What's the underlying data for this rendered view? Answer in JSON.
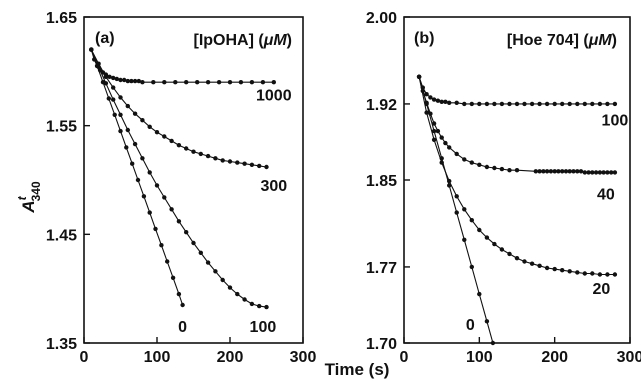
{
  "x_axis_title": "Time (s)",
  "chart_data": [
    {
      "type": "scatter",
      "panel": "(a)",
      "legend_title": "[IpOHA] (μM)",
      "legend_title_main": "[IpOHA] (",
      "legend_title_unit": "μM",
      "legend_title_close": ")",
      "ylabel": "A340t",
      "ylabel_main": "A",
      "ylabel_sup": "t",
      "ylabel_sub": "340",
      "xlim": [
        0,
        300
      ],
      "ylim": [
        1.35,
        1.65
      ],
      "xticks": [
        0,
        100,
        200,
        300
      ],
      "yticks": [
        1.35,
        1.45,
        1.55,
        1.65
      ],
      "xtick_labels": [
        "0",
        "100",
        "200",
        "300"
      ],
      "ytick_labels": [
        "1.35",
        "1.45",
        "1.55",
        "1.65"
      ],
      "series": [
        {
          "name": "1000",
          "label_at": [
            260,
            1.573
          ],
          "points": [
            [
              10,
              1.62
            ],
            [
              14,
              1.611
            ],
            [
              18,
              1.605
            ],
            [
              22,
              1.601
            ],
            [
              26,
              1.599
            ],
            [
              30,
              1.597
            ],
            [
              35,
              1.595
            ],
            [
              40,
              1.594
            ],
            [
              45,
              1.593
            ],
            [
              50,
              1.592
            ],
            [
              55,
              1.592
            ],
            [
              60,
              1.591
            ],
            [
              65,
              1.591
            ],
            [
              70,
              1.591
            ],
            [
              75,
              1.591
            ],
            [
              80,
              1.59
            ],
            [
              95,
              1.59
            ],
            [
              110,
              1.59
            ],
            [
              125,
              1.59
            ],
            [
              140,
              1.59
            ],
            [
              155,
              1.59
            ],
            [
              170,
              1.59
            ],
            [
              185,
              1.59
            ],
            [
              200,
              1.59
            ],
            [
              215,
              1.59
            ],
            [
              230,
              1.59
            ],
            [
              245,
              1.59
            ],
            [
              260,
              1.59
            ]
          ]
        },
        {
          "name": "300",
          "label_at": [
            260,
            1.49
          ],
          "points": [
            [
              10,
              1.62
            ],
            [
              20,
              1.607
            ],
            [
              30,
              1.595
            ],
            [
              40,
              1.585
            ],
            [
              50,
              1.576
            ],
            [
              60,
              1.568
            ],
            [
              70,
              1.561
            ],
            [
              80,
              1.555
            ],
            [
              90,
              1.549
            ],
            [
              100,
              1.544
            ],
            [
              110,
              1.54
            ],
            [
              120,
              1.536
            ],
            [
              130,
              1.532
            ],
            [
              140,
              1.529
            ],
            [
              150,
              1.526
            ],
            [
              160,
              1.524
            ],
            [
              170,
              1.522
            ],
            [
              180,
              1.52
            ],
            [
              190,
              1.518
            ],
            [
              200,
              1.517
            ],
            [
              210,
              1.516
            ],
            [
              220,
              1.515
            ],
            [
              230,
              1.514
            ],
            [
              240,
              1.513
            ],
            [
              250,
              1.512
            ]
          ]
        },
        {
          "name": "100",
          "label_at": [
            245,
            1.36
          ],
          "points": [
            [
              10,
              1.62
            ],
            [
              20,
              1.604
            ],
            [
              30,
              1.589
            ],
            [
              40,
              1.574
            ],
            [
              50,
              1.56
            ],
            [
              60,
              1.546
            ],
            [
              70,
              1.533
            ],
            [
              80,
              1.52
            ],
            [
              90,
              1.507
            ],
            [
              100,
              1.495
            ],
            [
              110,
              1.484
            ],
            [
              120,
              1.473
            ],
            [
              130,
              1.462
            ],
            [
              140,
              1.452
            ],
            [
              150,
              1.442
            ],
            [
              160,
              1.433
            ],
            [
              170,
              1.424
            ],
            [
              180,
              1.416
            ],
            [
              190,
              1.408
            ],
            [
              200,
              1.401
            ],
            [
              210,
              1.395
            ],
            [
              220,
              1.39
            ],
            [
              230,
              1.386
            ],
            [
              240,
              1.384
            ],
            [
              250,
              1.383
            ]
          ]
        },
        {
          "name": "0",
          "label_at": [
            135,
            1.36
          ],
          "points": [
            [
              10,
              1.62
            ],
            [
              18,
              1.605
            ],
            [
              26,
              1.59
            ],
            [
              34,
              1.575
            ],
            [
              42,
              1.56
            ],
            [
              50,
              1.545
            ],
            [
              58,
              1.53
            ],
            [
              66,
              1.515
            ],
            [
              74,
              1.5
            ],
            [
              82,
              1.485
            ],
            [
              90,
              1.47
            ],
            [
              98,
              1.455
            ],
            [
              106,
              1.44
            ],
            [
              114,
              1.425
            ],
            [
              122,
              1.41
            ],
            [
              130,
              1.395
            ],
            [
              135,
              1.385
            ]
          ]
        }
      ]
    },
    {
      "type": "scatter",
      "panel": "(b)",
      "legend_title": "[Hoe 704] (μM)",
      "legend_title_main": "[Hoe 704] (",
      "legend_title_unit": "μM",
      "legend_title_close": ")",
      "xlim": [
        0,
        300
      ],
      "ylim": [
        1.7,
        2.0
      ],
      "xticks": [
        0,
        100,
        200,
        300
      ],
      "yticks": [
        1.7,
        1.77,
        1.85,
        1.92,
        2.0
      ],
      "xtick_labels": [
        "0",
        "100",
        "200",
        "300"
      ],
      "ytick_labels": [
        "1.70",
        "1.77",
        "1.85",
        "1.92",
        "2.00"
      ],
      "series": [
        {
          "name": "100",
          "label_at": [
            280,
            1.9
          ],
          "points": [
            [
              20,
              1.945
            ],
            [
              25,
              1.935
            ],
            [
              30,
              1.929
            ],
            [
              35,
              1.926
            ],
            [
              40,
              1.924
            ],
            [
              45,
              1.923
            ],
            [
              50,
              1.922
            ],
            [
              55,
              1.922
            ],
            [
              60,
              1.921
            ],
            [
              70,
              1.921
            ],
            [
              80,
              1.92
            ],
            [
              90,
              1.92
            ],
            [
              100,
              1.92
            ],
            [
              110,
              1.92
            ],
            [
              120,
              1.92
            ],
            [
              130,
              1.92
            ],
            [
              140,
              1.92
            ],
            [
              150,
              1.92
            ],
            [
              160,
              1.92
            ],
            [
              170,
              1.92
            ],
            [
              180,
              1.92
            ],
            [
              190,
              1.92
            ],
            [
              200,
              1.92
            ],
            [
              210,
              1.92
            ],
            [
              220,
              1.92
            ],
            [
              230,
              1.92
            ],
            [
              240,
              1.92
            ],
            [
              250,
              1.92
            ],
            [
              260,
              1.92
            ],
            [
              270,
              1.92
            ],
            [
              280,
              1.92
            ]
          ]
        },
        {
          "name": "40",
          "label_at": [
            268,
            1.832
          ],
          "points": [
            [
              20,
              1.945
            ],
            [
              25,
              1.932
            ],
            [
              30,
              1.921
            ],
            [
              35,
              1.911
            ],
            [
              40,
              1.902
            ],
            [
              45,
              1.895
            ],
            [
              50,
              1.889
            ],
            [
              55,
              1.884
            ],
            [
              60,
              1.88
            ],
            [
              70,
              1.874
            ],
            [
              80,
              1.869
            ],
            [
              90,
              1.866
            ],
            [
              100,
              1.864
            ],
            [
              110,
              1.862
            ],
            [
              120,
              1.861
            ],
            [
              130,
              1.86
            ],
            [
              140,
              1.859
            ],
            [
              150,
              1.859
            ],
            [
              175,
              1.858
            ],
            [
              180,
              1.858
            ],
            [
              185,
              1.858
            ],
            [
              190,
              1.858
            ],
            [
              195,
              1.858
            ],
            [
              200,
              1.858
            ],
            [
              205,
              1.858
            ],
            [
              210,
              1.858
            ],
            [
              215,
              1.858
            ],
            [
              220,
              1.858
            ],
            [
              225,
              1.858
            ],
            [
              230,
              1.858
            ],
            [
              235,
              1.858
            ],
            [
              240,
              1.857
            ],
            [
              245,
              1.857
            ],
            [
              250,
              1.857
            ],
            [
              255,
              1.857
            ],
            [
              260,
              1.857
            ],
            [
              265,
              1.857
            ],
            [
              270,
              1.857
            ],
            [
              275,
              1.857
            ],
            [
              280,
              1.857
            ]
          ]
        },
        {
          "name": "20",
          "label_at": [
            262,
            1.745
          ],
          "points": [
            [
              20,
              1.945
            ],
            [
              30,
              1.912
            ],
            [
              40,
              1.887
            ],
            [
              50,
              1.866
            ],
            [
              60,
              1.849
            ],
            [
              70,
              1.835
            ],
            [
              80,
              1.823
            ],
            [
              90,
              1.813
            ],
            [
              100,
              1.804
            ],
            [
              110,
              1.797
            ],
            [
              120,
              1.791
            ],
            [
              130,
              1.786
            ],
            [
              140,
              1.782
            ],
            [
              150,
              1.778
            ],
            [
              160,
              1.775
            ],
            [
              170,
              1.773
            ],
            [
              180,
              1.771
            ],
            [
              190,
              1.769
            ],
            [
              200,
              1.768
            ],
            [
              210,
              1.767
            ],
            [
              220,
              1.766
            ],
            [
              230,
              1.765
            ],
            [
              240,
              1.764
            ],
            [
              250,
              1.764
            ],
            [
              260,
              1.763
            ],
            [
              270,
              1.763
            ],
            [
              280,
              1.763
            ]
          ]
        },
        {
          "name": "0",
          "label_at": [
            88,
            1.712
          ],
          "points": [
            [
              20,
              1.945
            ],
            [
              30,
              1.92
            ],
            [
              40,
              1.895
            ],
            [
              50,
              1.87
            ],
            [
              60,
              1.845
            ],
            [
              70,
              1.82
            ],
            [
              80,
              1.795
            ],
            [
              90,
              1.77
            ],
            [
              100,
              1.745
            ],
            [
              110,
              1.72
            ],
            [
              118,
              1.7
            ]
          ]
        }
      ]
    }
  ]
}
